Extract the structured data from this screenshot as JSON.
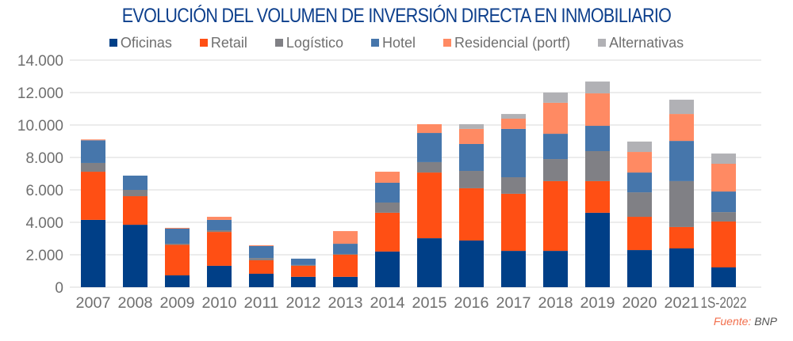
{
  "chart_data": {
    "type": "bar",
    "stacked": true,
    "title": "EVOLUCIÓN DEL VOLUMEN DE INVERSIÓN DIRECTA EN INMOBILIARIO",
    "xlabel": "",
    "ylabel": "",
    "ylim": [
      0,
      14000
    ],
    "yticks": [
      0,
      2000,
      4000,
      6000,
      8000,
      10000,
      12000,
      14000
    ],
    "ytick_labels": [
      "0",
      "2.000",
      "4.000",
      "6.000",
      "8.000",
      "10.000",
      "12.000",
      "14.000"
    ],
    "grid": true,
    "legend_position": "top",
    "categories": [
      "2007",
      "2008",
      "2009",
      "2010",
      "2011",
      "2012",
      "2013",
      "2014",
      "2015",
      "2016",
      "2017",
      "2018",
      "2019",
      "2020",
      "2021",
      "1S-2022"
    ],
    "series": [
      {
        "name": "Oficinas",
        "color": "#003f87",
        "values": [
          4150,
          3850,
          730,
          1320,
          830,
          640,
          640,
          2200,
          3020,
          2880,
          2240,
          2240,
          4590,
          2290,
          2390,
          1220
        ]
      },
      {
        "name": "Retail",
        "color": "#ff4f14",
        "values": [
          2970,
          1760,
          1880,
          2090,
          830,
          680,
          1360,
          2390,
          4050,
          3220,
          3520,
          4300,
          1950,
          2050,
          1320,
          2830
        ]
      },
      {
        "name": "Logístico",
        "color": "#808085",
        "values": [
          540,
          390,
          70,
          100,
          140,
          50,
          50,
          630,
          640,
          1070,
          1020,
          1360,
          1850,
          1510,
          2830,
          580
        ]
      },
      {
        "name": "Hotel",
        "color": "#4676ab",
        "values": [
          1400,
          880,
          930,
          640,
          740,
          390,
          630,
          1220,
          1800,
          1660,
          2980,
          1560,
          1560,
          1220,
          2480,
          1270
        ]
      },
      {
        "name": "Residencial (portf)",
        "color": "#ff8a63",
        "values": [
          50,
          0,
          50,
          190,
          50,
          0,
          780,
          680,
          540,
          930,
          630,
          1910,
          2000,
          1270,
          1660,
          1710
        ]
      },
      {
        "name": "Alternativas",
        "color": "#b1b1b5",
        "values": [
          0,
          0,
          0,
          0,
          0,
          0,
          0,
          0,
          0,
          290,
          290,
          630,
          730,
          640,
          880,
          630
        ]
      }
    ]
  },
  "source": {
    "label": "Fuente:",
    "value": "BNP"
  }
}
